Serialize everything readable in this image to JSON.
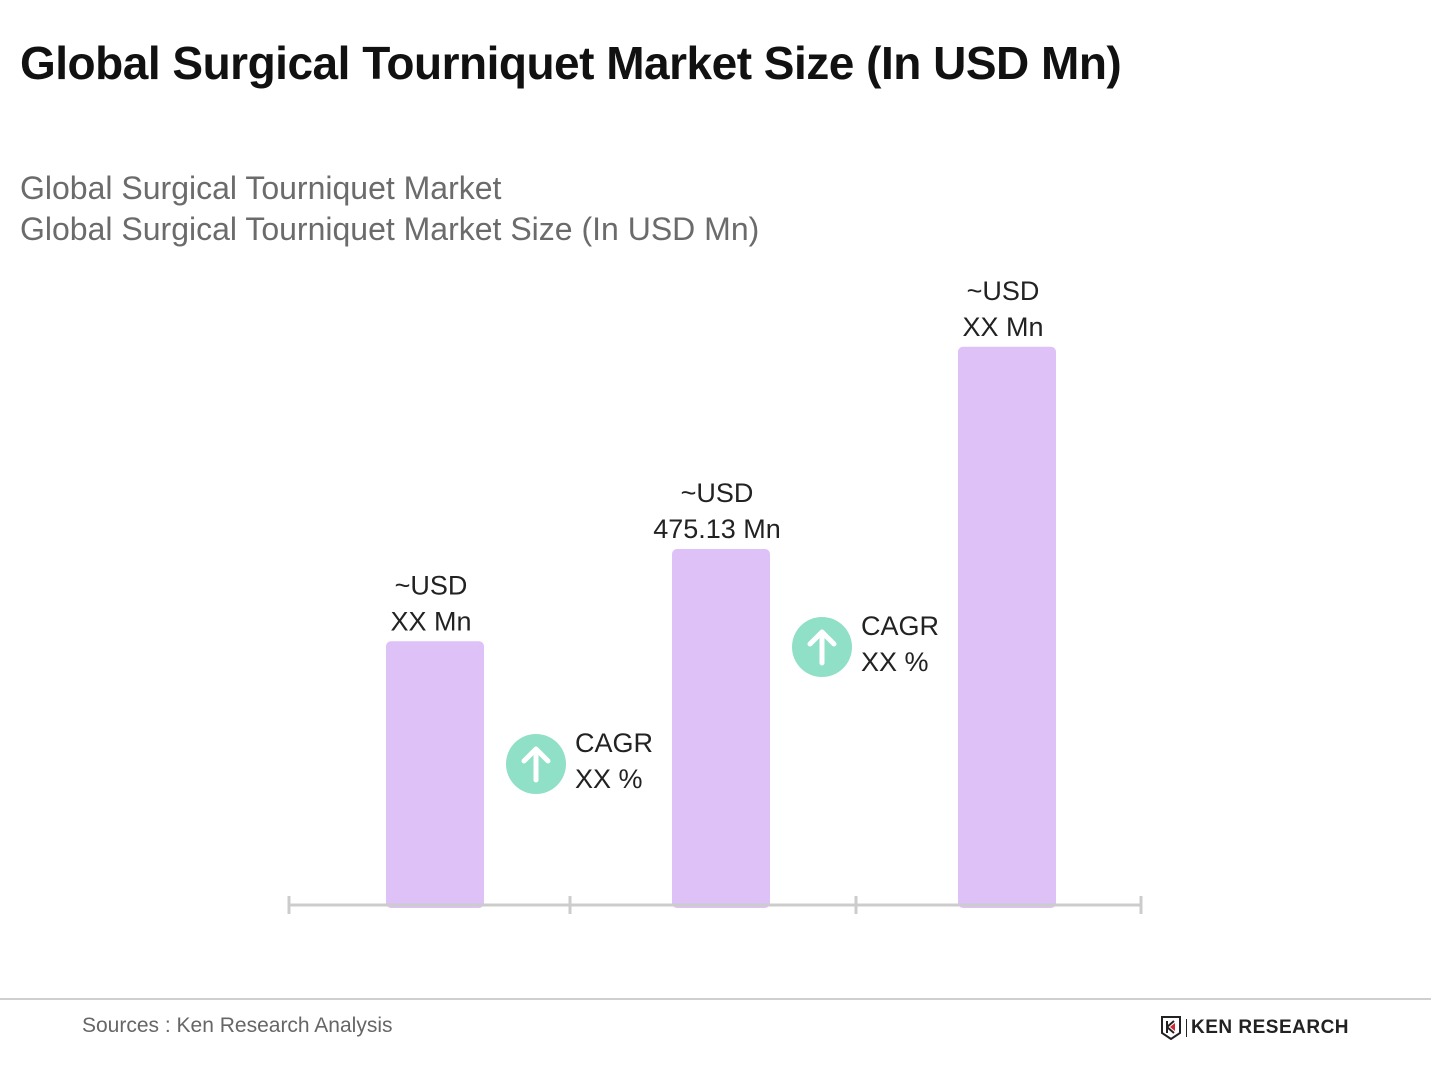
{
  "header": {
    "title": "Global Surgical Tourniquet Market Size (In USD Mn)",
    "subtitle_line1": "Global Surgical Tourniquet Market",
    "subtitle_line2": "Global Surgical Tourniquet Market Size (In USD Mn)"
  },
  "chart_data": {
    "type": "bar",
    "title": "Global Surgical Tourniquet Market Size (In USD Mn)",
    "categories": [
      "",
      "",
      ""
    ],
    "values": [
      352,
      475.13,
      745
    ],
    "value_note_estimated": [
      true,
      false,
      true
    ],
    "data_labels": [
      {
        "line1": "~USD",
        "line2": "XX Mn"
      },
      {
        "line1": "~USD",
        "line2": "475.13 Mn"
      },
      {
        "line1": "~USD",
        "line2": "XX Mn"
      }
    ],
    "annotations": [
      {
        "line1": "CAGR",
        "line2": "XX %",
        "icon": "arrow-up-circle-icon"
      },
      {
        "line1": "CAGR",
        "line2": "XX %",
        "icon": "arrow-up-circle-icon"
      }
    ],
    "xlabel": "",
    "ylabel": "",
    "ylim": [
      0,
      745
    ],
    "grid": false,
    "colors": {
      "bar": "#ddc1f7",
      "cagr_icon": "#8fe0c6",
      "axis": "#cccccc"
    }
  },
  "footer": {
    "source": "Sources : Ken Research Analysis",
    "logo_text": "KEN RESEARCH"
  }
}
